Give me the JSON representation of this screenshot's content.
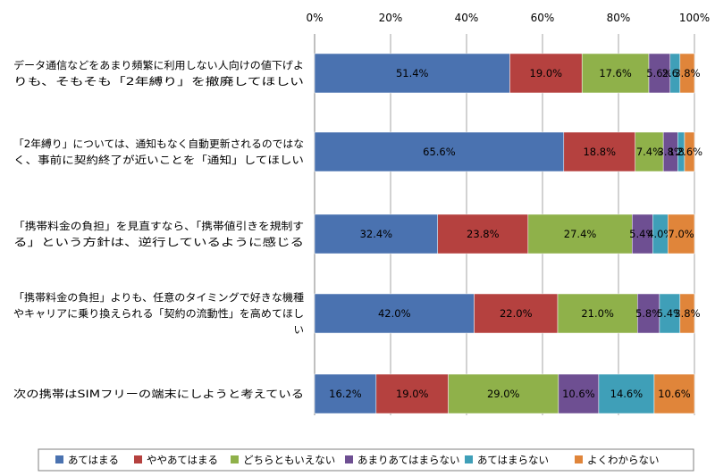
{
  "chart_data": {
    "type": "bar",
    "orientation": "horizontal",
    "stacked": "percent",
    "xlim": [
      0,
      100
    ],
    "x_ticks": [
      "0%",
      "20%",
      "40%",
      "60%",
      "80%",
      "100%"
    ],
    "grid": true,
    "legend_position": "bottom",
    "categories": [
      [
        "データ通信などをあまり頻繁に利用しない人向けの値下げよ",
        "りも、そもそも「2年縛り」を撤廃してほしい"
      ],
      [
        "「2年縛り」については、通知もなく自動更新されるのではな",
        "く、事前に契約終了が近いことを「通知」してほしい"
      ],
      [
        "「携帯料金の負担」を見直すなら、「携帯値引きを規制す",
        "る」という方針は、逆行しているように感じる"
      ],
      [
        "「携帯料金の負担」よりも、任意のタイミングで好きな機種",
        "やキャリアに乗り換えられる「契約の流動性」を高めてほし",
        "い"
      ],
      [
        "次の携帯はSIMフリーの端末にしようと考えている"
      ]
    ],
    "series": [
      {
        "name": "あてはまる",
        "color": "#4a72b0",
        "values": [
          51.4,
          65.6,
          32.4,
          42.0,
          16.2
        ],
        "labels": [
          "51.4%",
          "65.6%",
          "32.4%",
          "42.0%",
          "16.2%"
        ]
      },
      {
        "name": "ややあてはまる",
        "color": "#b5413f",
        "values": [
          19.0,
          18.8,
          23.8,
          22.0,
          19.0
        ],
        "labels": [
          "19.0%",
          "18.8%",
          "23.8%",
          "22.0%",
          "19.0%"
        ]
      },
      {
        "name": "どちらともいえない",
        "color": "#8fb14a",
        "values": [
          17.6,
          7.4,
          27.4,
          21.0,
          29.0
        ],
        "labels": [
          "17.6%",
          "7.4%",
          "27.4%",
          "21.0%",
          "29.0%"
        ]
      },
      {
        "name": "あまりあてはまらない",
        "color": "#6e4f92",
        "values": [
          5.6,
          3.8,
          5.4,
          5.8,
          10.6
        ],
        "labels": [
          "5.6%",
          "3.8%",
          "5.4%",
          "5.8%",
          "10.6%"
        ]
      },
      {
        "name": "あてはまらない",
        "color": "#3f9fb8",
        "values": [
          2.6,
          1.8,
          4.0,
          5.4,
          14.6
        ],
        "labels": [
          "2.6%",
          "1.8%",
          "4.0%",
          "5.4%",
          "14.6%"
        ]
      },
      {
        "name": "よくわからない",
        "color": "#e0853a",
        "values": [
          3.8,
          2.6,
          7.0,
          3.8,
          10.6
        ],
        "labels": [
          "3.8%",
          "2.6%",
          "7.0%",
          "3.8%",
          "10.6%"
        ]
      }
    ]
  }
}
